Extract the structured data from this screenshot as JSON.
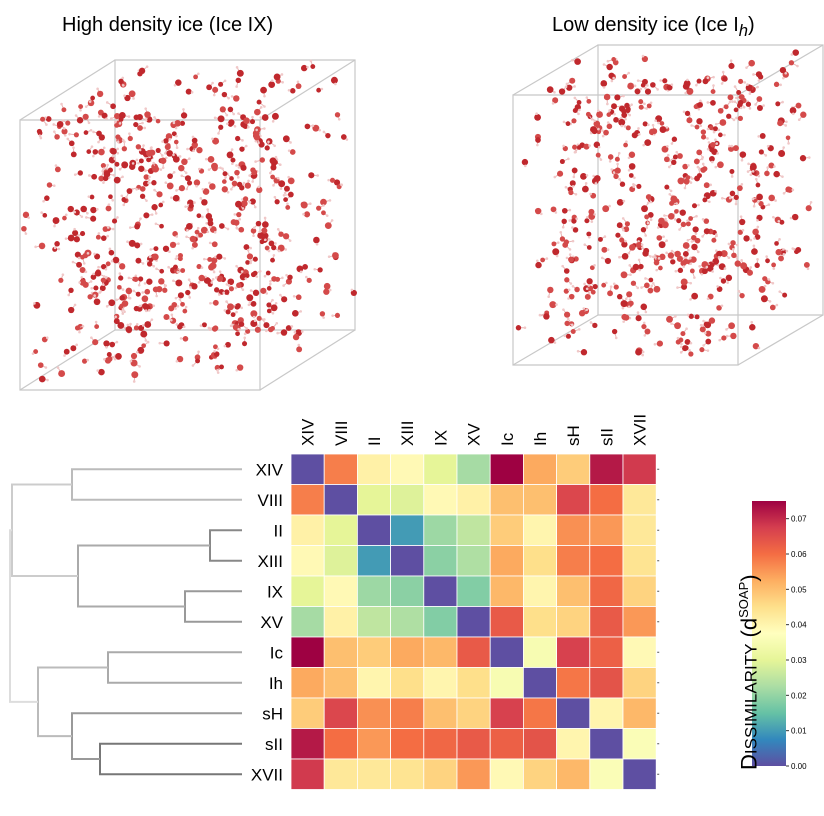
{
  "panels": {
    "left_title": "High density ice (Ice IX)",
    "right_title_prefix": "Low density ice (Ice I",
    "right_title_sub": "h",
    "right_title_suffix": ")"
  },
  "colorbar": {
    "label_first": "D",
    "label_rest": "ISSIMILARITY",
    "label_paren": " (d",
    "label_sup": "SOAP",
    "label_close": ")",
    "ticks": [
      "0.00",
      "0.01",
      "0.02",
      "0.03",
      "0.04",
      "0.05",
      "0.06",
      "0.07"
    ],
    "min": 0.0,
    "max": 0.075,
    "colors": [
      "#5e4fa2",
      "#3288bd",
      "#66c2a5",
      "#abdda4",
      "#e6f598",
      "#ffffbf",
      "#fee08b",
      "#fdae61",
      "#f46d43",
      "#d53e4f",
      "#9e0142"
    ]
  },
  "chart_data": {
    "type": "heatmap",
    "x_labels": [
      "XIV",
      "VIII",
      "II",
      "XIII",
      "IX",
      "XV",
      "Ic",
      "Ih",
      "sH",
      "sII",
      "XVII"
    ],
    "y_labels": [
      "XIV",
      "VIII",
      "II",
      "XIII",
      "IX",
      "XV",
      "Ic",
      "Ih",
      "sH",
      "sII",
      "XVII"
    ],
    "dendrogram": "hierarchical clustering on rows",
    "values": [
      [
        0.0,
        0.058,
        0.041,
        0.039,
        0.03,
        0.022,
        0.075,
        0.053,
        0.048,
        0.072,
        0.068
      ],
      [
        0.058,
        0.0,
        0.03,
        0.029,
        0.039,
        0.041,
        0.05,
        0.05,
        0.066,
        0.06,
        0.043
      ],
      [
        0.041,
        0.03,
        0.0,
        0.01,
        0.021,
        0.025,
        0.048,
        0.04,
        0.056,
        0.055,
        0.043
      ],
      [
        0.039,
        0.029,
        0.01,
        0.0,
        0.019,
        0.023,
        0.053,
        0.045,
        0.058,
        0.06,
        0.044
      ],
      [
        0.03,
        0.039,
        0.021,
        0.019,
        0.0,
        0.018,
        0.051,
        0.04,
        0.05,
        0.061,
        0.047
      ],
      [
        0.022,
        0.041,
        0.025,
        0.023,
        0.018,
        0.0,
        0.063,
        0.045,
        0.047,
        0.063,
        0.055
      ],
      [
        0.075,
        0.05,
        0.048,
        0.053,
        0.051,
        0.063,
        0.0,
        0.035,
        0.067,
        0.062,
        0.039
      ],
      [
        0.053,
        0.05,
        0.04,
        0.045,
        0.04,
        0.045,
        0.035,
        0.0,
        0.059,
        0.064,
        0.047
      ],
      [
        0.048,
        0.066,
        0.056,
        0.058,
        0.05,
        0.047,
        0.067,
        0.059,
        0.0,
        0.04,
        0.051
      ],
      [
        0.072,
        0.06,
        0.055,
        0.06,
        0.061,
        0.063,
        0.062,
        0.064,
        0.04,
        0.0,
        0.036
      ],
      [
        0.068,
        0.043,
        0.043,
        0.044,
        0.047,
        0.055,
        0.039,
        0.047,
        0.051,
        0.036,
        0.0
      ]
    ]
  }
}
